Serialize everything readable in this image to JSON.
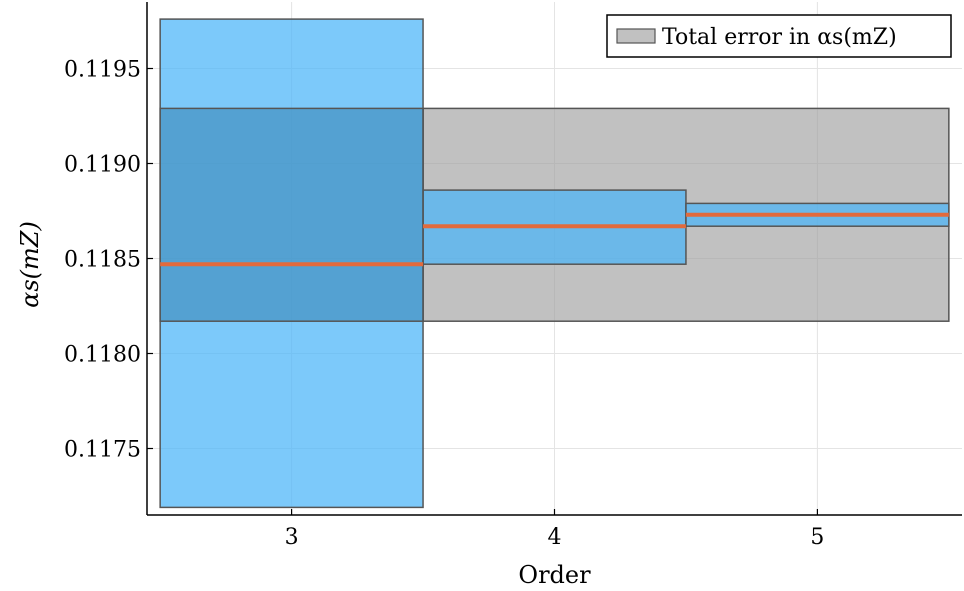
{
  "chart_data": {
    "type": "bar",
    "xlabel": "Order",
    "ylabel": "αs(mZ)",
    "xlim": [
      2.45,
      5.55
    ],
    "ylim": [
      0.11715,
      0.11985
    ],
    "x_ticks": [
      {
        "value": 3,
        "label": "3"
      },
      {
        "value": 4,
        "label": "4"
      },
      {
        "value": 5,
        "label": "5"
      }
    ],
    "y_ticks": [
      {
        "value": 0.1175,
        "label": "0.1175"
      },
      {
        "value": 0.118,
        "label": "0.1180"
      },
      {
        "value": 0.1185,
        "label": "0.1185"
      },
      {
        "value": 0.119,
        "label": "0.1190"
      },
      {
        "value": 0.1195,
        "label": "0.1195"
      }
    ],
    "grid": true,
    "legend": {
      "position": "top-right",
      "entries": [
        {
          "label": "Total error in αs(mZ)",
          "color": "#a0a0a0"
        }
      ]
    },
    "total_error_band": {
      "x_start": 3.5,
      "x_end": 5.5,
      "y_low": 0.11817,
      "y_high": 0.11929,
      "color": "#a0a0a0"
    },
    "series": [
      {
        "boxes": [
          {
            "order": 3,
            "x_start": 2.5,
            "x_end": 3.5,
            "y_low": 0.11719,
            "y_high": 0.11976,
            "central": 0.11847
          },
          {
            "order": 4,
            "x_start": 3.5,
            "x_end": 4.5,
            "y_low": 0.11847,
            "y_high": 0.11886,
            "central": 0.11867
          },
          {
            "order": 5,
            "x_start": 4.5,
            "x_end": 5.5,
            "y_low": 0.11867,
            "y_high": 0.11879,
            "central": 0.11873
          }
        ],
        "box_color": "#4ab4f8",
        "central_color": "#e26a3c"
      }
    ],
    "overlay_band": {
      "x_start": 2.5,
      "x_end": 3.5,
      "y_low": 0.11817,
      "y_high": 0.11929,
      "color": "#3a87b8"
    }
  }
}
